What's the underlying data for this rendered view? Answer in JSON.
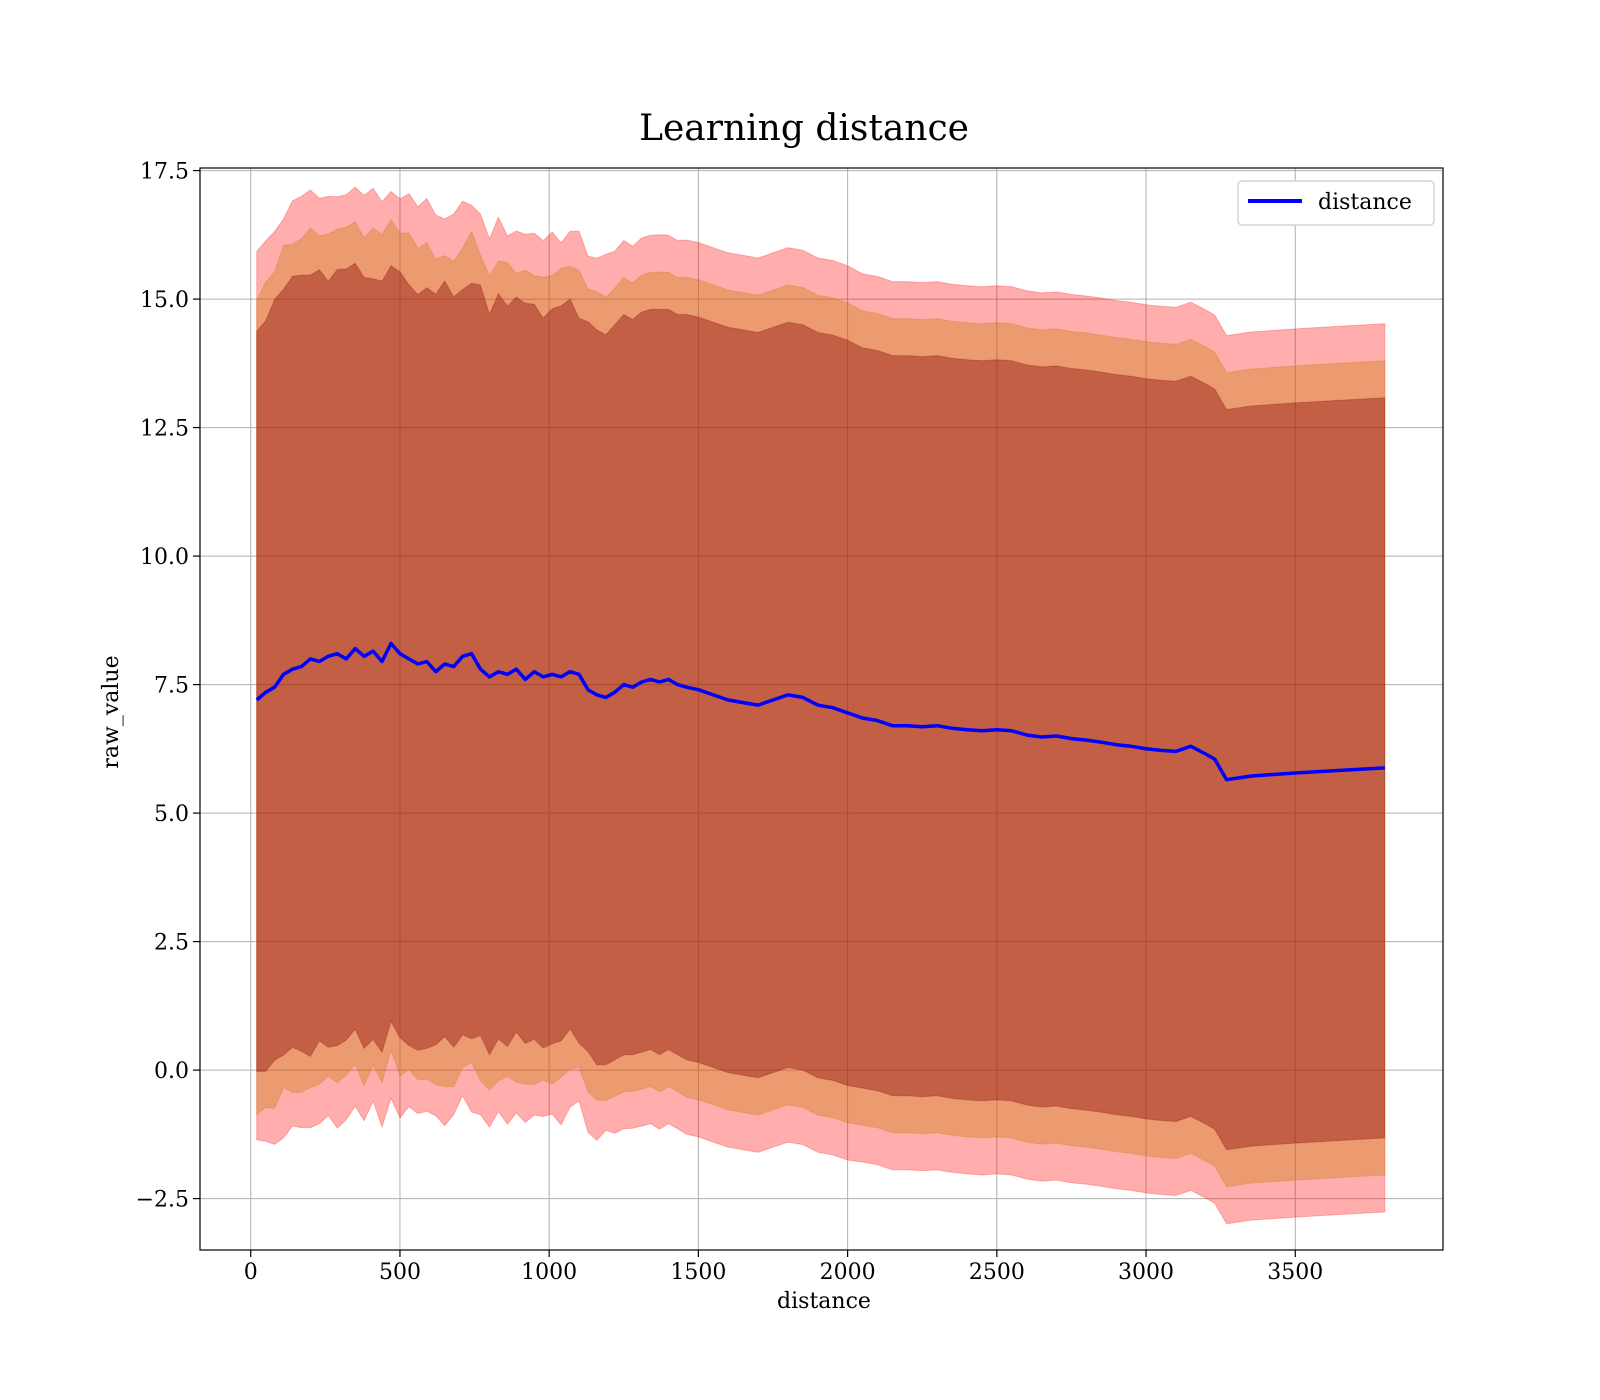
{
  "chart_data": {
    "type": "line",
    "title": "Learning distance",
    "xlabel": "distance",
    "ylabel": "raw_value",
    "xlim": [
      -170,
      3995
    ],
    "ylim": [
      -3.5,
      17.55
    ],
    "xticks": [
      0,
      500,
      1000,
      1500,
      2000,
      2500,
      3000,
      3500
    ],
    "xtick_labels": [
      "0",
      "500",
      "1000",
      "1500",
      "2000",
      "2500",
      "3000",
      "3500"
    ],
    "yticks": [
      -2.5,
      0.0,
      2.5,
      5.0,
      7.5,
      10.0,
      12.5,
      15.0,
      17.5
    ],
    "ytick_labels": [
      "−2.5",
      "0.0",
      "2.5",
      "5.0",
      "7.5",
      "10.0",
      "12.5",
      "15.0",
      "17.5"
    ],
    "grid": true,
    "legend": {
      "position": "top-right",
      "entries": [
        {
          "label": "distance",
          "color": "#0000ff"
        }
      ]
    },
    "colors": {
      "line": "#0000ff",
      "band": "#ff0000",
      "band_inner": "#800000",
      "band_middle": "#c87800"
    },
    "band_sigma_multipliers": [
      1.0,
      1.1,
      1.2
    ],
    "series": [
      {
        "name": "distance",
        "x": [
          20,
          50,
          80,
          110,
          140,
          170,
          200,
          230,
          260,
          290,
          320,
          350,
          380,
          410,
          440,
          470,
          500,
          530,
          560,
          590,
          620,
          650,
          680,
          710,
          740,
          770,
          800,
          830,
          860,
          890,
          920,
          950,
          980,
          1010,
          1040,
          1070,
          1100,
          1130,
          1160,
          1190,
          1220,
          1250,
          1280,
          1310,
          1340,
          1370,
          1400,
          1430,
          1460,
          1500,
          1550,
          1600,
          1650,
          1700,
          1750,
          1800,
          1850,
          1900,
          1950,
          2000,
          2050,
          2100,
          2150,
          2200,
          2250,
          2300,
          2350,
          2400,
          2450,
          2500,
          2550,
          2600,
          2650,
          2700,
          2750,
          2800,
          2850,
          2900,
          2950,
          3000,
          3050,
          3100,
          3150,
          3200,
          3230,
          3270,
          3350,
          3500,
          3650,
          3800
        ],
        "y": [
          7.2,
          7.35,
          7.45,
          7.7,
          7.8,
          7.85,
          8.0,
          7.95,
          8.05,
          8.1,
          8.0,
          8.2,
          8.05,
          8.15,
          7.95,
          8.3,
          8.1,
          8.0,
          7.9,
          7.95,
          7.75,
          7.9,
          7.85,
          8.05,
          8.1,
          7.8,
          7.65,
          7.75,
          7.7,
          7.8,
          7.6,
          7.75,
          7.65,
          7.7,
          7.65,
          7.75,
          7.7,
          7.4,
          7.3,
          7.25,
          7.35,
          7.5,
          7.45,
          7.55,
          7.6,
          7.55,
          7.6,
          7.5,
          7.45,
          7.4,
          7.3,
          7.2,
          7.15,
          7.1,
          7.2,
          7.3,
          7.25,
          7.1,
          7.05,
          6.95,
          6.85,
          6.8,
          6.7,
          6.7,
          6.68,
          6.7,
          6.65,
          6.62,
          6.6,
          6.62,
          6.6,
          6.52,
          6.48,
          6.5,
          6.45,
          6.42,
          6.38,
          6.33,
          6.3,
          6.25,
          6.22,
          6.2,
          6.3,
          6.15,
          6.05,
          5.65,
          5.72,
          5.78,
          5.83,
          5.88
        ],
        "std": [
          7.2,
          7.3,
          7.4,
          7.45,
          7.5,
          7.55,
          7.6,
          7.5,
          7.45,
          7.55,
          7.5,
          7.45,
          7.5,
          7.4,
          7.5,
          7.35,
          7.45,
          7.4,
          7.35,
          7.4,
          7.3,
          7.35,
          7.3,
          7.25,
          7.35,
          7.3,
          7.2,
          7.25,
          7.2,
          7.15,
          7.2,
          7.15,
          7.1,
          7.15,
          7.15,
          7.1,
          7.05,
          7.1,
          7.15,
          7.1,
          7.15,
          7.2,
          7.15,
          7.2,
          7.2,
          7.25,
          7.2,
          7.2,
          7.25,
          7.25,
          7.25,
          7.25,
          7.25,
          7.25,
          7.25,
          7.25,
          7.25,
          7.25,
          7.25,
          7.25,
          7.2,
          7.2,
          7.2,
          7.2,
          7.2,
          7.2,
          7.2,
          7.2,
          7.2,
          7.2,
          7.2,
          7.2,
          7.2,
          7.2,
          7.2,
          7.2,
          7.2,
          7.2,
          7.2,
          7.2,
          7.2,
          7.2,
          7.2,
          7.2,
          7.2,
          7.2,
          7.2,
          7.2,
          7.2,
          7.2
        ]
      }
    ]
  }
}
